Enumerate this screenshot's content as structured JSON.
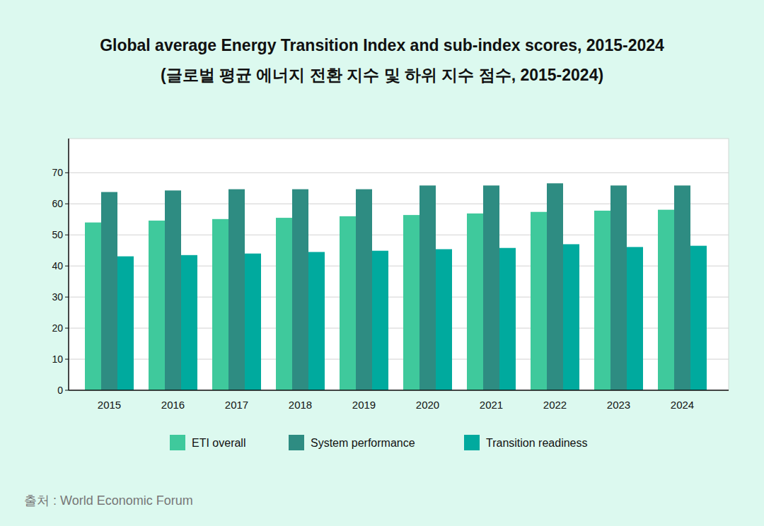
{
  "chart_data": {
    "type": "bar",
    "title": "Global average Energy Transition Index and sub-index scores, 2015-2024",
    "subtitle": "(글로벌 평균 에너지 전환 지수 및 하위 지수 점수, 2015-2024)",
    "source": "출처 : World Economic Forum",
    "categories": [
      "2015",
      "2016",
      "2017",
      "2018",
      "2019",
      "2020",
      "2021",
      "2022",
      "2023",
      "2024"
    ],
    "series": [
      {
        "name": "ETI overall",
        "color": "#3fc99c",
        "values": [
          54.0,
          54.6,
          55.1,
          55.5,
          56.0,
          56.4,
          56.9,
          57.4,
          57.8,
          58.1
        ]
      },
      {
        "name": "System performance",
        "color": "#2e8c82",
        "values": [
          63.8,
          64.3,
          64.7,
          64.7,
          64.7,
          65.9,
          65.9,
          66.6,
          65.9,
          65.9
        ]
      },
      {
        "name": "Transition readiness",
        "color": "#00aa9e",
        "values": [
          43.1,
          43.5,
          44.0,
          44.5,
          44.9,
          45.4,
          45.8,
          47.0,
          46.1,
          46.5
        ]
      }
    ],
    "ylim": [
      0,
      81
    ],
    "yticks": [
      0,
      10,
      20,
      30,
      40,
      50,
      60,
      70
    ],
    "grid": true,
    "legend": "bottom"
  }
}
